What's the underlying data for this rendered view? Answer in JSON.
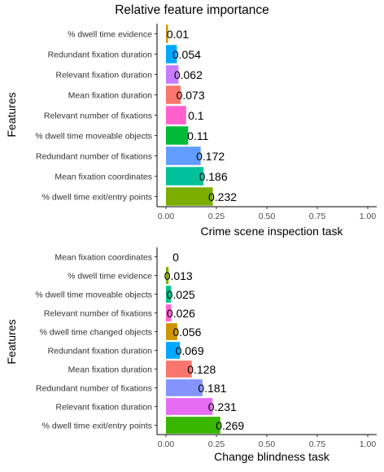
{
  "chart_data": [
    {
      "type": "bar",
      "orientation": "horizontal",
      "title": "Relative feature importance",
      "xlabel": "Crime scene inspection task",
      "ylabel": "Features",
      "xlim": [
        0,
        1
      ],
      "xticks": [
        "0.00",
        "0.25",
        "0.50",
        "0.75",
        "1.00"
      ],
      "grid": false,
      "legend": "none",
      "categories": [
        "% dwell time evidence",
        "Redundant fixation duration",
        "Relevant  fixation duration",
        "Mean fixation duration",
        "Relevant  number of fixations",
        "% dwell time moveable objects",
        "Redundant number of fixations",
        "Mean fixation coordinates",
        "% dwell time exit/entry points"
      ],
      "values": [
        0.01,
        0.054,
        0.062,
        0.073,
        0.1,
        0.11,
        0.172,
        0.186,
        0.232
      ],
      "labels": [
        "0.01",
        "0.054",
        "0.062",
        "0.073",
        "0.1",
        "0.11",
        "0.172",
        "0.186",
        "0.232"
      ],
      "colors": [
        "#C49A00",
        "#00A9FF",
        "#C77CFF",
        "#F8766D",
        "#FF61CC",
        "#00BA38",
        "#619CFF",
        "#00C19A",
        "#7CAE00"
      ]
    },
    {
      "type": "bar",
      "orientation": "horizontal",
      "title": "",
      "xlabel": "Change blindness task",
      "ylabel": "Features",
      "xlim": [
        0,
        1
      ],
      "xticks": [
        "0.00",
        "0.25",
        "0.50",
        "0.75",
        "1.00"
      ],
      "grid": false,
      "legend": "none",
      "categories": [
        "Mean fixation coordinates",
        "% dwell time evidence",
        "% dwell time moveable objects",
        "Relevant  number of fixations",
        "% dwell time changed objects",
        "Redundant fixation duration",
        "Mean fixation duration",
        "Redundant number of fixations",
        "Relevant  fixation duration",
        "% dwell time exit/entry points"
      ],
      "values": [
        0,
        0.013,
        0.025,
        0.026,
        0.056,
        0.069,
        0.128,
        0.181,
        0.231,
        0.269
      ],
      "labels": [
        "0",
        "0.013",
        "0.025",
        "0.026",
        "0.056",
        "0.069",
        "0.128",
        "0.181",
        "0.231",
        "0.269"
      ],
      "colors": [
        "#00BFC4",
        "#7CAE00",
        "#00C08B",
        "#FF61CC",
        "#CD9600",
        "#00A9FF",
        "#F8766D",
        "#8494FF",
        "#E76BF3",
        "#39B600"
      ]
    }
  ]
}
